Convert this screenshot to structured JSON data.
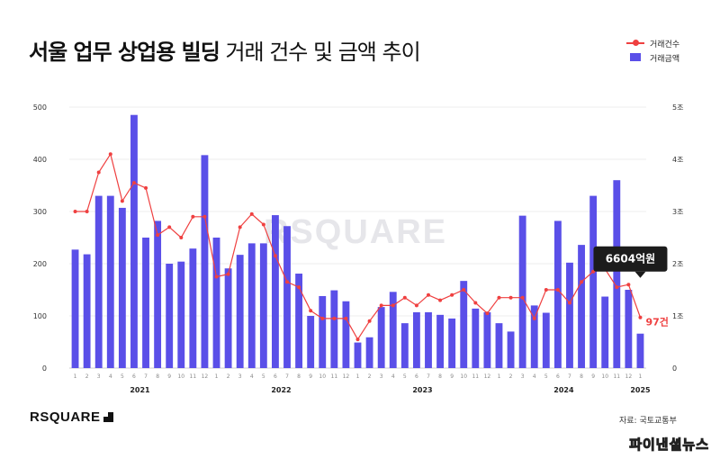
{
  "title": {
    "bold": "서울 업무 상업용 빌딩",
    "normal": "거래 건수 및 금액 추이"
  },
  "legend": {
    "count": "거래건수",
    "amount": "거래금액"
  },
  "brand": "RSQUARE",
  "watermark_logo": "RSQUARE",
  "source": "자료: 국토교통부",
  "watermark_bottom": "파이낸셜뉴스",
  "colors": {
    "bar": "#5a4fe8",
    "line": "#ef4040",
    "callout": "#1c1c1c"
  },
  "chart_data": {
    "type": "bar+line",
    "categories": [
      "1",
      "2",
      "3",
      "4",
      "5",
      "6",
      "7",
      "8",
      "9",
      "10",
      "11",
      "12",
      "1",
      "2",
      "3",
      "4",
      "5",
      "6",
      "7",
      "8",
      "9",
      "10",
      "11",
      "12",
      "1",
      "2",
      "3",
      "4",
      "5",
      "6",
      "7",
      "8",
      "9",
      "10",
      "11",
      "12",
      "1",
      "2",
      "3",
      "4",
      "5",
      "6",
      "7",
      "8",
      "9",
      "10",
      "11",
      "12",
      "1"
    ],
    "years": [
      {
        "label": "2021",
        "index": 5.5
      },
      {
        "label": "2022",
        "index": 17.5
      },
      {
        "label": "2023",
        "index": 29.5
      },
      {
        "label": "2024",
        "index": 41.5
      },
      {
        "label": "2025",
        "index": 48
      }
    ],
    "left_axis": {
      "ticks": [
        "0",
        "100",
        "200",
        "300",
        "400",
        "500"
      ],
      "ylim": [
        0,
        500
      ]
    },
    "right_axis": {
      "ticks": [
        "0",
        "1조",
        "2조",
        "3조",
        "4조",
        "5조"
      ],
      "ylim": [
        0,
        5
      ]
    },
    "series": [
      {
        "name": "거래건수",
        "type": "line",
        "axis": "left",
        "values": [
          300,
          300,
          375,
          410,
          320,
          355,
          345,
          255,
          270,
          250,
          290,
          290,
          175,
          180,
          270,
          295,
          275,
          215,
          165,
          155,
          110,
          95,
          95,
          95,
          55,
          90,
          120,
          120,
          135,
          120,
          140,
          130,
          140,
          150,
          125,
          105,
          135,
          135,
          135,
          95,
          150,
          150,
          125,
          165,
          185,
          190,
          155,
          160,
          97
        ]
      },
      {
        "name": "거래금액",
        "type": "bar",
        "axis": "right",
        "unit": "조",
        "values": [
          2.27,
          2.18,
          3.3,
          3.3,
          3.07,
          4.85,
          2.5,
          2.82,
          2.0,
          2.04,
          2.29,
          4.08,
          2.5,
          1.91,
          2.17,
          2.39,
          2.39,
          2.93,
          2.72,
          1.81,
          1.0,
          1.38,
          1.49,
          1.28,
          0.49,
          0.59,
          1.17,
          1.46,
          0.86,
          1.07,
          1.07,
          1.02,
          0.95,
          1.67,
          1.14,
          1.07,
          0.86,
          0.7,
          2.92,
          1.2,
          1.06,
          2.82,
          2.02,
          2.36,
          3.3,
          1.37,
          3.6,
          1.5,
          0.66
        ]
      }
    ],
    "annotations": [
      {
        "text": "6604억원",
        "series": "거래금액",
        "index": 48
      },
      {
        "text": "97건",
        "series": "거래건수",
        "index": 48
      }
    ],
    "grid": true,
    "legend_position": "top-right"
  }
}
